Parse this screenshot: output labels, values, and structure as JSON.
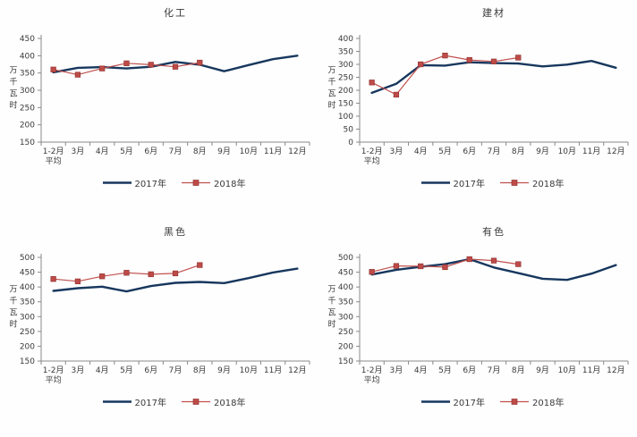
{
  "legend": {
    "series1_label": "2017年",
    "series2_label": "2018年"
  },
  "axis": {
    "ylabel": "万千瓦时",
    "x_first_label": "1-2月",
    "x_first_sublabel": "平均"
  },
  "colors": {
    "series_2017": "#17375E",
    "series_2018": "#C0504D",
    "axis": "#8a8a8a",
    "text": "#3a3a3a"
  },
  "chart_data": [
    {
      "type": "line",
      "title": "化工",
      "ylabel": "万千瓦时",
      "xlabel": "",
      "ylim": [
        150,
        450
      ],
      "ytick_step": 50,
      "grid": false,
      "legend_position": "bottom",
      "categories": [
        [
          "1-2月",
          "平均"
        ],
        "3月",
        "4月",
        "5月",
        "6月",
        "7月",
        "8月",
        "9月",
        "10月",
        "11月",
        "12月"
      ],
      "series": [
        {
          "name": "2017年",
          "color": "#17375E",
          "line_width": 2.4,
          "marker": "none",
          "values": [
            352,
            365,
            367,
            363,
            368,
            382,
            374,
            355,
            373,
            390,
            400
          ]
        },
        {
          "name": "2018年",
          "color": "#C0504D",
          "line_width": 1.2,
          "marker": "square",
          "values": [
            360,
            345,
            363,
            378,
            374,
            368,
            380
          ]
        }
      ]
    },
    {
      "type": "line",
      "title": "建材",
      "ylabel": "万千瓦时",
      "xlabel": "",
      "ylim": [
        0,
        400
      ],
      "ytick_step": 50,
      "grid": false,
      "legend_position": "bottom",
      "categories": [
        [
          "1-2月",
          "平均"
        ],
        "3月",
        "4月",
        "5月",
        "6月",
        "7月",
        "8月",
        "9月",
        "10月",
        "11月",
        "12月"
      ],
      "series": [
        {
          "name": "2017年",
          "color": "#17375E",
          "line_width": 2.4,
          "marker": "none",
          "values": [
            190,
            225,
            297,
            295,
            308,
            305,
            303,
            292,
            299,
            313,
            287
          ]
        },
        {
          "name": "2018年",
          "color": "#C0504D",
          "line_width": 1.2,
          "marker": "square",
          "values": [
            230,
            183,
            300,
            334,
            317,
            311,
            326
          ]
        }
      ]
    },
    {
      "type": "line",
      "title": "黑色",
      "ylabel": "万千瓦时",
      "xlabel": "",
      "ylim": [
        150,
        500
      ],
      "ytick_step": 50,
      "grid": false,
      "legend_position": "bottom",
      "categories": [
        [
          "1-2月",
          "平均"
        ],
        "3月",
        "4月",
        "5月",
        "6月",
        "7月",
        "8月",
        "9月",
        "10月",
        "11月",
        "12月"
      ],
      "series": [
        {
          "name": "2017年",
          "color": "#17375E",
          "line_width": 2.4,
          "marker": "none",
          "values": [
            387,
            396,
            401,
            385,
            403,
            414,
            417,
            413,
            430,
            449,
            462
          ]
        },
        {
          "name": "2018年",
          "color": "#C0504D",
          "line_width": 1.2,
          "marker": "square",
          "values": [
            427,
            419,
            436,
            448,
            443,
            446,
            474
          ]
        }
      ]
    },
    {
      "type": "line",
      "title": "有色",
      "ylabel": "万千瓦时",
      "xlabel": "",
      "ylim": [
        150,
        500
      ],
      "ytick_step": 50,
      "grid": false,
      "legend_position": "bottom",
      "categories": [
        [
          "1-2月",
          "平均"
        ],
        "3月",
        "4月",
        "5月",
        "6月",
        "7月",
        "8月",
        "9月",
        "10月",
        "11月",
        "12月"
      ],
      "series": [
        {
          "name": "2017年",
          "color": "#17375E",
          "line_width": 2.4,
          "marker": "none",
          "values": [
            442,
            458,
            468,
            477,
            494,
            466,
            447,
            428,
            424,
            445,
            474
          ]
        },
        {
          "name": "2018年",
          "color": "#C0504D",
          "line_width": 1.2,
          "marker": "square",
          "values": [
            451,
            471,
            470,
            467,
            494,
            489,
            477
          ]
        }
      ]
    }
  ]
}
